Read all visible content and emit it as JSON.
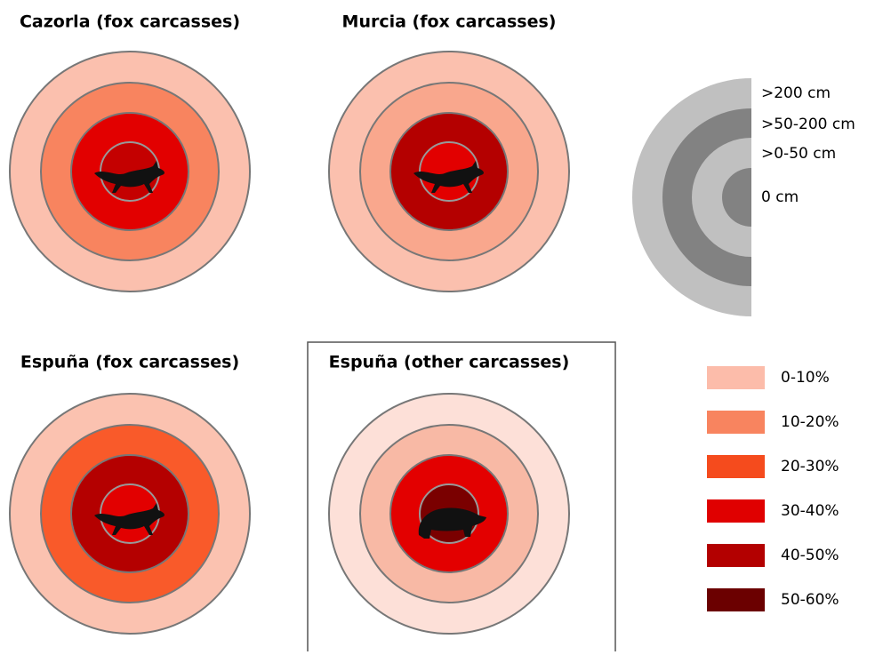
{
  "panels": [
    {
      "title": "Cazorla (fox carcasses)",
      "animal": "fox",
      "ring_colors": [
        "#fbc0ae",
        "#f8845f",
        "#e20000",
        "#c40000"
      ]
    },
    {
      "title": "Murcia (fox carcasses)",
      "animal": "fox",
      "ring_colors": [
        "#fbc0ae",
        "#f9a78d",
        "#b40000",
        "#e20000"
      ]
    },
    {
      "title": "Espuña (fox carcasses)",
      "animal": "fox",
      "ring_colors": [
        "#fbc2b0",
        "#f95a2a",
        "#b40000",
        "#e20000"
      ]
    },
    {
      "title": "Espuña (other carcasses)",
      "animal": "other",
      "ring_colors": [
        "#fde0d8",
        "#f8b9a5",
        "#e30000",
        "#7a0000"
      ],
      "framed": true
    }
  ],
  "distance_legend": [
    {
      "label": ">200 cm",
      "color": "#c0c0c0"
    },
    {
      "label": ">50-200 cm",
      "color": "#828282"
    },
    {
      "label": ">0-50 cm",
      "color": "#c0c0c0"
    },
    {
      "label": "0 cm",
      "color": "#828282"
    }
  ],
  "color_legend": [
    {
      "label": "0-10%",
      "color": "#fcbcaa"
    },
    {
      "label": "10-20%",
      "color": "#f8845f"
    },
    {
      "label": "20-30%",
      "color": "#f54b1d"
    },
    {
      "label": "30-40%",
      "color": "#e00000"
    },
    {
      "label": "40-50%",
      "color": "#b30000"
    },
    {
      "label": "50-60%",
      "color": "#6b0000"
    }
  ]
}
